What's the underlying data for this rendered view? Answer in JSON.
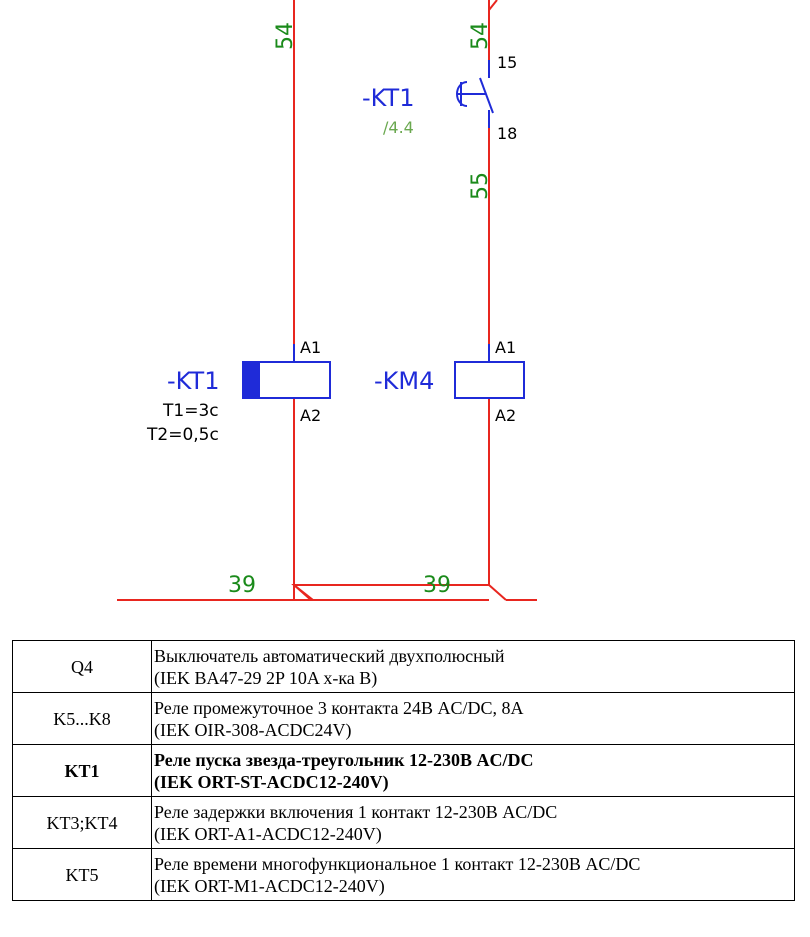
{
  "diagram": {
    "wire_numbers": {
      "left_top": "54",
      "right_top": "54",
      "right_mid": "55",
      "bottom_left": "39",
      "bottom_right": "39"
    },
    "contact": {
      "label": "-KT1",
      "reference": "/4.4",
      "pin_top": "15",
      "pin_bottom": "18"
    },
    "coil_left": {
      "label": "-KT1",
      "pin_top": "A1",
      "pin_bottom": "A2",
      "param1": "T1=3с",
      "param2": "T2=0,5с"
    },
    "coil_right": {
      "label": "-KM4",
      "pin_top": "A1",
      "pin_bottom": "A2"
    },
    "colors": {
      "wire": "#e8261f",
      "symbol": "#1f2bd8",
      "wire_number": "#1a8a1a",
      "reference": "#6aa84f"
    }
  },
  "table": {
    "rows": [
      {
        "code": "Q4",
        "line1": "Выключатель автоматический двухполюсный",
        "line2": "(IEK BA47-29 2P 10A х-ка B)",
        "bold": false
      },
      {
        "code": "K5...K8",
        "line1": "Реле промежуточное 3 контакта 24В AC/DC, 8А",
        "line2": "(IEK OIR-308-ACDC24V)",
        "bold": false
      },
      {
        "code": "KT1",
        "line1": "Реле пуска звезда-треугольник 12-230В AC/DC",
        "line2": "(IEK ORT-ST-ACDC12-240V)",
        "bold": true
      },
      {
        "code": "KT3;KT4",
        "line1": "Реле задержки включения 1 контакт 12-230В AC/DC",
        "line2": "(IEK ORT-A1-ACDC12-240V)",
        "bold": false
      },
      {
        "code": "KT5",
        "line1": "Реле времени многофункциональное 1 контакт 12-230В AC/DC",
        "line2": "(IEK ORT-M1-ACDC12-240V)",
        "bold": false
      }
    ]
  }
}
